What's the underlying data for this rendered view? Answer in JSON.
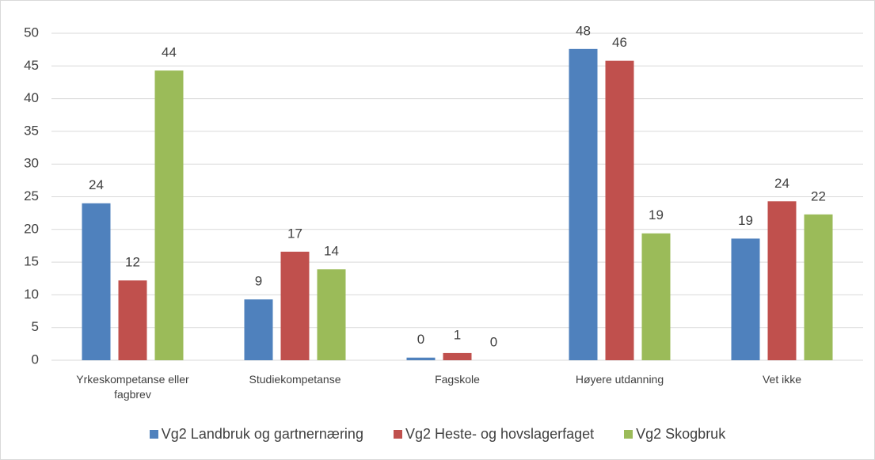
{
  "chart_data": {
    "type": "bar",
    "categories": [
      "Yrkeskompetanse eller fagbrev",
      "Studiekompetanse",
      "Fagskole",
      "Høyere utdanning",
      "Vet ikke"
    ],
    "series": [
      {
        "name": "Vg2 Landbruk og gartnernæring",
        "color": "#4f81bd",
        "values": [
          24.0,
          9.3,
          0.4,
          47.6,
          18.6
        ],
        "value_labels": [
          "24",
          "9",
          "0",
          "48",
          "19"
        ]
      },
      {
        "name": "Vg2 Heste- og hovslagerfaget",
        "color": "#c0504d",
        "values": [
          12.2,
          16.6,
          1.1,
          45.8,
          24.3
        ],
        "value_labels": [
          "12",
          "17",
          "1",
          "46",
          "24"
        ]
      },
      {
        "name": "Vg2 Skogbruk",
        "color": "#9bbb59",
        "values": [
          44.3,
          13.9,
          0,
          19.4,
          22.3
        ],
        "value_labels": [
          "44",
          "14",
          "0",
          "19",
          "22"
        ]
      }
    ],
    "ylim": [
      0,
      50
    ],
    "yticks": [
      0,
      5,
      10,
      15,
      20,
      25,
      30,
      35,
      40,
      45,
      50
    ],
    "grid": true,
    "legend": "bottom"
  }
}
